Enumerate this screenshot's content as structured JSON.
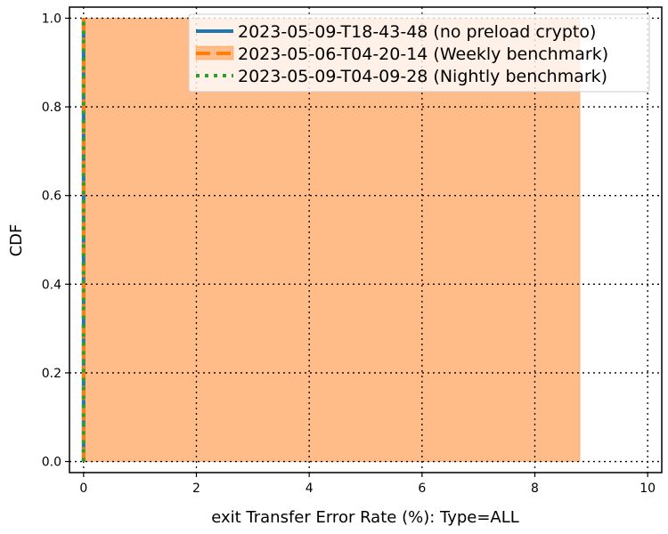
{
  "chart_data": {
    "type": "line",
    "xlabel": "exit Transfer Error Rate (%): Type=ALL",
    "ylabel": "CDF",
    "xlim": [
      -0.25,
      10.25
    ],
    "ylim": [
      -0.025,
      1.025
    ],
    "xticks": [
      "0",
      "2",
      "4",
      "6",
      "8",
      "10"
    ],
    "yticks": [
      "0.0",
      "0.2",
      "0.4",
      "0.6",
      "0.8",
      "1.0"
    ],
    "grid": true,
    "legend_position": "top-right",
    "series": [
      {
        "name": "2023-05-09-T18-43-48 (no preload crypto)",
        "color": "#1f77b4",
        "style": "solid",
        "x": [
          0,
          0
        ],
        "y": [
          0.0,
          1.0
        ]
      },
      {
        "name": "2023-05-06-T04-20-14 (Weekly benchmark)",
        "color": "#ff7f0e",
        "style": "dashed",
        "x": [
          0,
          0
        ],
        "y": [
          0.0,
          1.0
        ],
        "band": {
          "x_min": 0,
          "x_max": 8.8,
          "y_min": 0.0,
          "y_max": 1.0,
          "fill": "#ffbb88"
        }
      },
      {
        "name": "2023-05-09-T04-09-28 (Nightly benchmark)",
        "color": "#2ca02c",
        "style": "dotted",
        "x": [
          0,
          0
        ],
        "y": [
          0.0,
          1.0
        ]
      }
    ]
  }
}
